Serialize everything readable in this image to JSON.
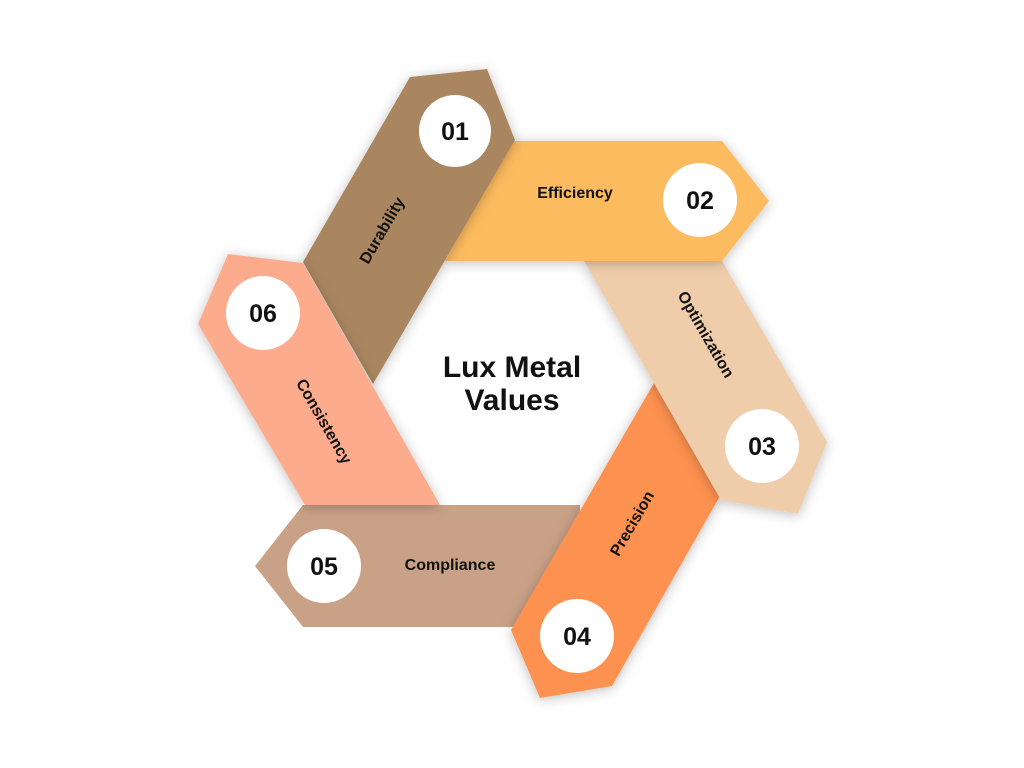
{
  "title": {
    "line1": "Lux Metal",
    "line2": "Values"
  },
  "items": [
    {
      "number": "01",
      "label": "Durability",
      "color": "#A9865E"
    },
    {
      "number": "02",
      "label": "Efficiency",
      "color": "#FDBB5E"
    },
    {
      "number": "03",
      "label": "Optimization",
      "color": "#EFCDAB"
    },
    {
      "number": "04",
      "label": "Precision",
      "color": "#FD9150"
    },
    {
      "number": "05",
      "label": "Compliance",
      "color": "#C9A187"
    },
    {
      "number": "06",
      "label": "Consistency",
      "color": "#FCAB8C"
    }
  ]
}
